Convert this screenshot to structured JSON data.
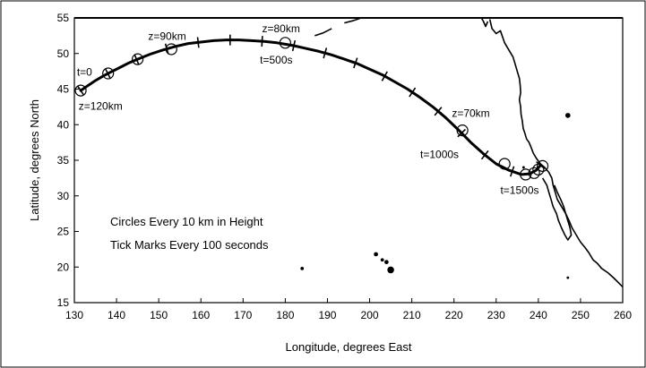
{
  "chart_data": {
    "type": "line",
    "title": "",
    "xlabel": "Longitude, degrees East",
    "ylabel": "Latitude, degrees North",
    "xlim": [
      130,
      260
    ],
    "ylim": [
      15,
      55
    ],
    "xticks": [
      130,
      140,
      150,
      160,
      170,
      180,
      190,
      200,
      210,
      220,
      230,
      240,
      250,
      260
    ],
    "yticks": [
      15,
      20,
      25,
      30,
      35,
      40,
      45,
      50,
      55
    ],
    "grid": false,
    "trajectory": {
      "lon": [
        131.5,
        133,
        135,
        137,
        139,
        141,
        143,
        145,
        148,
        151,
        154,
        157,
        160,
        163,
        166,
        169,
        172,
        175,
        178,
        180,
        182,
        185,
        188,
        191,
        194,
        197,
        200,
        203,
        206,
        209,
        212,
        215,
        218,
        221,
        224,
        227,
        230,
        233,
        236,
        238,
        239.5,
        240.5
      ],
      "lat": [
        44.8,
        45.4,
        46.2,
        46.9,
        47.5,
        48.1,
        48.7,
        49.2,
        49.9,
        50.5,
        51.0,
        51.4,
        51.6,
        51.8,
        51.9,
        51.9,
        51.8,
        51.7,
        51.5,
        51.3,
        51.1,
        50.7,
        50.3,
        49.8,
        49.2,
        48.6,
        47.8,
        47.0,
        46.0,
        45.0,
        43.8,
        42.5,
        41.0,
        39.3,
        37.5,
        35.9,
        34.5,
        33.6,
        33.0,
        33.1,
        33.6,
        34.3
      ]
    },
    "circles_every_10km": {
      "lon": [
        131.5,
        138,
        145,
        153,
        180,
        222,
        232,
        237,
        239,
        240,
        241
      ],
      "lat": [
        44.8,
        47.2,
        49.2,
        50.6,
        51.5,
        39.2,
        34.5,
        33.0,
        33.2,
        33.7,
        34.2
      ]
    },
    "annotations": [
      {
        "text": "t=0",
        "lon": 130.6,
        "lat": 46.9
      },
      {
        "text": "z=120km",
        "lon": 131,
        "lat": 42.1
      },
      {
        "text": "z=90km",
        "lon": 147.5,
        "lat": 51.9
      },
      {
        "text": "z=80km",
        "lon": 174.5,
        "lat": 53.0
      },
      {
        "text": "t=500s",
        "lon": 174,
        "lat": 48.6
      },
      {
        "text": "z=70km",
        "lon": 219.5,
        "lat": 41.1
      },
      {
        "text": "t=1000s",
        "lon": 212,
        "lat": 35.3
      },
      {
        "text": "t=1500s",
        "lon": 231,
        "lat": 30.3
      }
    ],
    "legend_note": [
      "Circles Every 10 km in Height",
      "Tick Marks Every 100 seconds"
    ],
    "coastline": [
      [
        [
          228.5,
          54.8
        ],
        [
          229,
          53.5
        ],
        [
          230,
          52.8
        ],
        [
          231,
          53.2
        ],
        [
          232,
          51.5
        ],
        [
          233,
          50.5
        ],
        [
          234,
          49.5
        ],
        [
          234.5,
          48.5
        ],
        [
          235,
          47.5
        ],
        [
          235.5,
          46.5
        ],
        [
          235.7,
          45.5
        ],
        [
          235.8,
          44.5
        ],
        [
          235.5,
          43.5
        ],
        [
          235.8,
          42.5
        ],
        [
          235.9,
          41.5
        ],
        [
          236.2,
          40.5
        ],
        [
          236.4,
          39.5
        ],
        [
          236.8,
          38.8
        ],
        [
          237.2,
          38.0
        ],
        [
          237.8,
          37.5
        ],
        [
          238.3,
          36.8
        ],
        [
          238.8,
          36.0
        ],
        [
          239.5,
          35.3
        ],
        [
          240.5,
          34.5
        ],
        [
          241.5,
          34.0
        ],
        [
          242.5,
          33.3
        ],
        [
          243.2,
          32.5
        ],
        [
          243.5,
          31.5
        ],
        [
          244,
          30.5
        ],
        [
          244.5,
          29.5
        ],
        [
          245.5,
          28.5
        ],
        [
          246.5,
          27.5
        ],
        [
          247.3,
          26.5
        ],
        [
          248,
          25.5
        ],
        [
          249,
          24.5
        ],
        [
          250,
          23.5
        ],
        [
          251,
          22.8
        ],
        [
          252,
          22.0
        ],
        [
          253,
          21.0
        ],
        [
          254,
          20.5
        ],
        [
          255,
          19.8
        ],
        [
          256.5,
          19.2
        ],
        [
          258,
          18.4
        ],
        [
          259,
          17.8
        ],
        [
          260,
          17.2
        ]
      ],
      [
        [
          241,
          32.5
        ],
        [
          242,
          31.5
        ],
        [
          242.5,
          30.5
        ],
        [
          243,
          29.5
        ],
        [
          243.5,
          28.5
        ],
        [
          244.3,
          27.5
        ],
        [
          244.8,
          26.5
        ],
        [
          245.5,
          25.5
        ],
        [
          246.3,
          24.5
        ],
        [
          247,
          23.8
        ],
        [
          247.8,
          24.5
        ],
        [
          247.5,
          25.5
        ],
        [
          247,
          26.5
        ],
        [
          246.5,
          27.5
        ],
        [
          246,
          28.5
        ],
        [
          245.3,
          29.5
        ],
        [
          244.5,
          30.5
        ],
        [
          243.8,
          31.5
        ]
      ],
      [
        [
          226.5,
          55
        ],
        [
          227,
          54.5
        ],
        [
          227.5,
          53.8
        ],
        [
          228,
          54.5
        ]
      ],
      [
        [
          194,
          54.3
        ],
        [
          196,
          54.6
        ],
        [
          198,
          55
        ]
      ],
      [
        [
          187,
          52.5
        ],
        [
          189,
          52.9
        ],
        [
          191,
          53.5
        ]
      ]
    ],
    "islands": [
      {
        "lon": 184,
        "lat": 19.8,
        "r": 0.4
      },
      {
        "lon": 201.5,
        "lat": 21.8,
        "r": 0.5
      },
      {
        "lon": 203,
        "lat": 21.0,
        "r": 0.4
      },
      {
        "lon": 204,
        "lat": 20.7,
        "r": 0.5
      },
      {
        "lon": 205,
        "lat": 19.6,
        "r": 0.8
      },
      {
        "lon": 247,
        "lat": 41.3,
        "r": 0.6
      },
      {
        "lon": 247,
        "lat": 18.5,
        "r": 0.3
      },
      {
        "lon": 236.5,
        "lat": 34.0,
        "r": 0.3
      }
    ]
  }
}
